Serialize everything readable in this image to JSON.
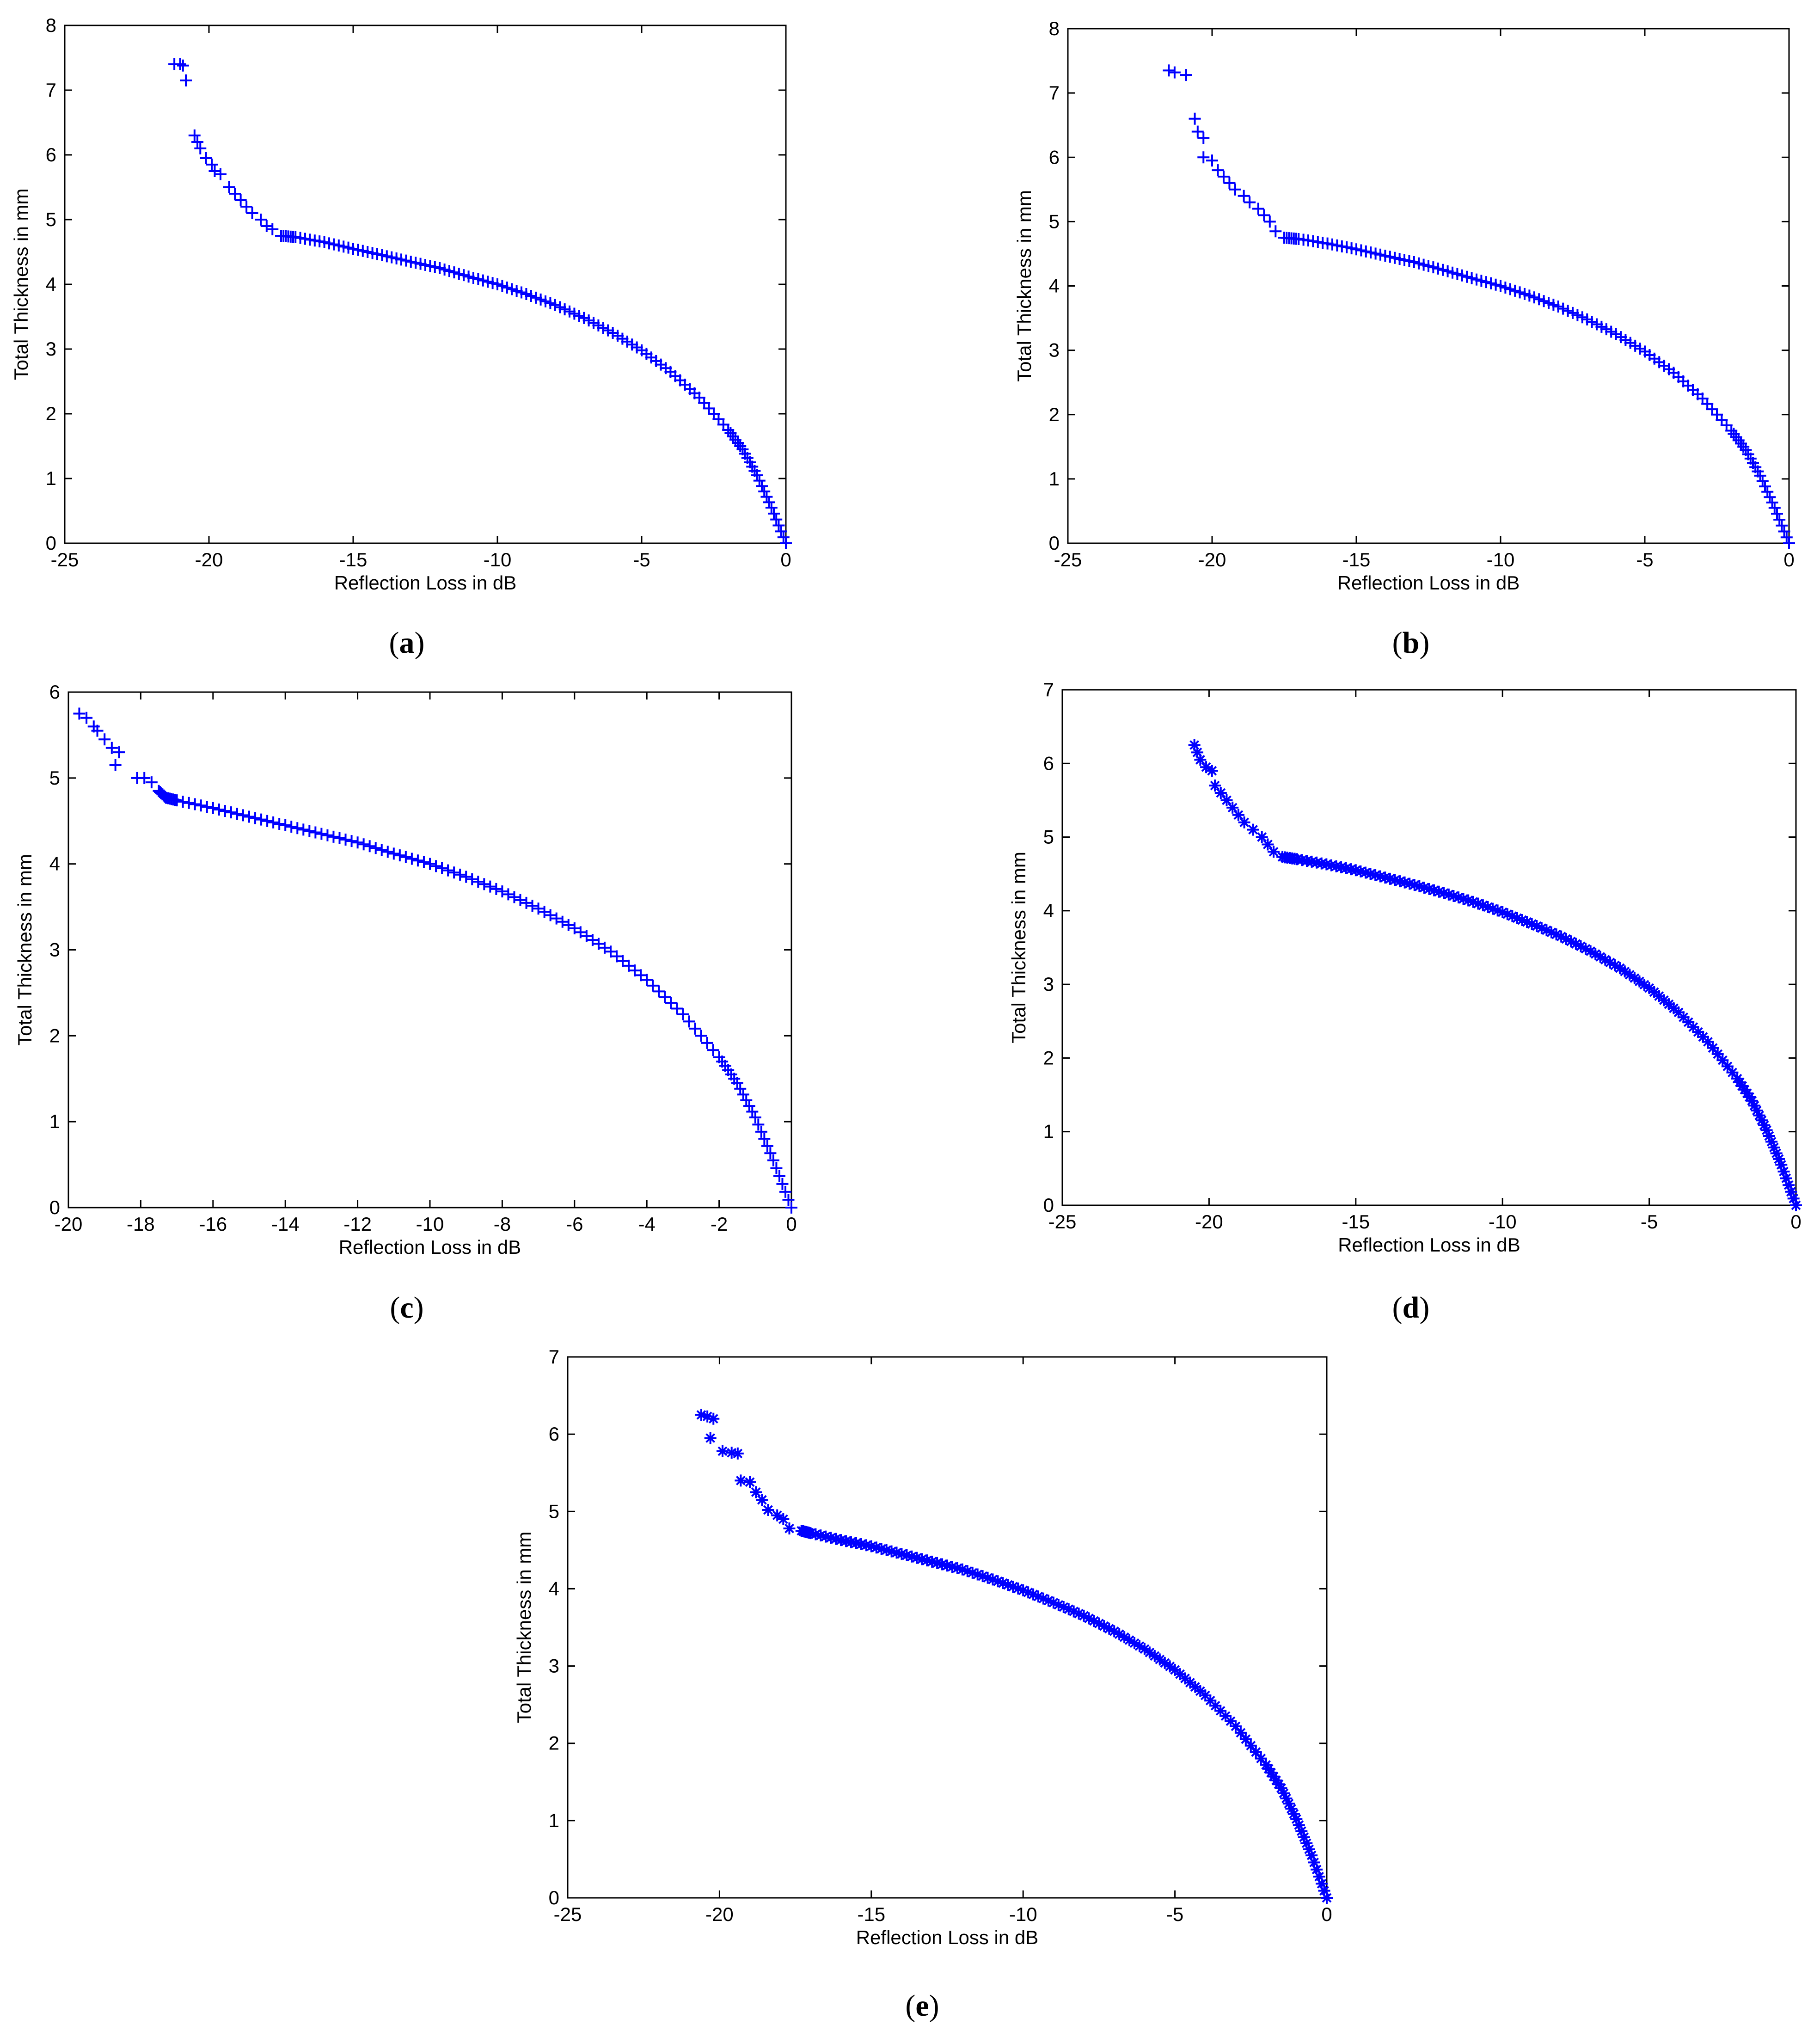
{
  "chart_data": [
    {
      "type": "scatter",
      "panel": "a",
      "marker": "plus",
      "xlabel": "Reflection Loss in dB",
      "ylabel": "Total Thickness in mm",
      "xlim": [
        -25,
        0
      ],
      "ylim": [
        0,
        8
      ],
      "xticks": [
        -25,
        -20,
        -15,
        -10,
        -5,
        0
      ],
      "yticks": [
        0,
        1,
        2,
        3,
        4,
        5,
        6,
        7,
        8
      ],
      "grid": false,
      "points": [
        [
          -21.2,
          7.4
        ],
        [
          -21.0,
          7.4
        ],
        [
          -20.9,
          7.38
        ],
        [
          -20.8,
          7.15
        ],
        [
          -20.5,
          6.3
        ],
        [
          -20.4,
          6.2
        ],
        [
          -20.3,
          6.1
        ],
        [
          -20.1,
          5.95
        ],
        [
          -19.9,
          5.85
        ],
        [
          -19.8,
          5.75
        ],
        [
          -19.6,
          5.7
        ],
        [
          -19.3,
          5.5
        ],
        [
          -19.1,
          5.4
        ],
        [
          -18.9,
          5.3
        ],
        [
          -18.7,
          5.2
        ],
        [
          -18.5,
          5.1
        ],
        [
          -18.2,
          5.0
        ],
        [
          -18.0,
          4.9
        ],
        [
          -17.8,
          4.85
        ],
        [
          -17.5,
          4.75
        ],
        [
          -17.0,
          4.73
        ],
        [
          -16.0,
          4.65
        ],
        [
          -15.0,
          4.55
        ],
        [
          -14.0,
          4.45
        ],
        [
          -13.0,
          4.35
        ],
        [
          -12.0,
          4.25
        ],
        [
          -11.0,
          4.12
        ],
        [
          -10.0,
          4.0
        ],
        [
          -9.0,
          3.85
        ],
        [
          -8.0,
          3.68
        ],
        [
          -7.0,
          3.48
        ],
        [
          -6.0,
          3.25
        ],
        [
          -5.0,
          2.98
        ],
        [
          -4.0,
          2.65
        ],
        [
          -3.0,
          2.25
        ],
        [
          -2.0,
          1.75
        ],
        [
          -1.5,
          1.45
        ],
        [
          -1.0,
          1.05
        ],
        [
          -0.5,
          0.55
        ],
        [
          0.0,
          0.0
        ]
      ]
    },
    {
      "type": "scatter",
      "panel": "b",
      "marker": "plus",
      "xlabel": "Reflection Loss in dB",
      "ylabel": "Total Thickness in mm",
      "xlim": [
        -25,
        0
      ],
      "ylim": [
        0,
        8
      ],
      "xticks": [
        -25,
        -20,
        -15,
        -10,
        -5,
        0
      ],
      "yticks": [
        0,
        1,
        2,
        3,
        4,
        5,
        6,
        7,
        8
      ],
      "grid": false,
      "points": [
        [
          -21.5,
          7.35
        ],
        [
          -21.3,
          7.32
        ],
        [
          -20.9,
          7.28
        ],
        [
          -20.6,
          6.6
        ],
        [
          -20.5,
          6.4
        ],
        [
          -20.3,
          6.3
        ],
        [
          -20.3,
          6.0
        ],
        [
          -20.0,
          5.95
        ],
        [
          -19.8,
          5.8
        ],
        [
          -19.6,
          5.7
        ],
        [
          -19.4,
          5.6
        ],
        [
          -19.2,
          5.5
        ],
        [
          -18.9,
          5.4
        ],
        [
          -18.7,
          5.3
        ],
        [
          -18.4,
          5.2
        ],
        [
          -18.2,
          5.1
        ],
        [
          -18.0,
          5.0
        ],
        [
          -17.8,
          4.85
        ],
        [
          -17.5,
          4.75
        ],
        [
          -17.0,
          4.73
        ],
        [
          -16.0,
          4.66
        ],
        [
          -15.0,
          4.57
        ],
        [
          -14.0,
          4.47
        ],
        [
          -13.0,
          4.37
        ],
        [
          -12.0,
          4.25
        ],
        [
          -11.0,
          4.12
        ],
        [
          -10.0,
          4.0
        ],
        [
          -9.0,
          3.85
        ],
        [
          -8.0,
          3.68
        ],
        [
          -7.0,
          3.48
        ],
        [
          -6.0,
          3.25
        ],
        [
          -5.0,
          2.98
        ],
        [
          -4.0,
          2.65
        ],
        [
          -3.0,
          2.25
        ],
        [
          -2.0,
          1.75
        ],
        [
          -1.5,
          1.45
        ],
        [
          -1.0,
          1.05
        ],
        [
          -0.5,
          0.55
        ],
        [
          0.0,
          0.0
        ]
      ]
    },
    {
      "type": "scatter",
      "panel": "c",
      "marker": "plus",
      "xlabel": "Reflection Loss in dB",
      "ylabel": "Total Thickness in mm",
      "xlim": [
        -20,
        0
      ],
      "ylim": [
        0,
        6
      ],
      "xticks": [
        -20,
        -18,
        -16,
        -14,
        -12,
        -10,
        -8,
        -6,
        -4,
        -2,
        0
      ],
      "yticks": [
        0,
        1,
        2,
        3,
        4,
        5,
        6
      ],
      "grid": false,
      "points": [
        [
          -19.7,
          5.75
        ],
        [
          -19.5,
          5.7
        ],
        [
          -19.3,
          5.6
        ],
        [
          -19.2,
          5.55
        ],
        [
          -19.0,
          5.45
        ],
        [
          -18.8,
          5.35
        ],
        [
          -18.6,
          5.3
        ],
        [
          -18.7,
          5.15
        ],
        [
          -18.1,
          5.0
        ],
        [
          -17.9,
          5.0
        ],
        [
          -17.7,
          4.95
        ],
        [
          -17.5,
          4.85
        ],
        [
          -17.3,
          4.77
        ],
        [
          -17.0,
          4.74
        ],
        [
          -16.0,
          4.65
        ],
        [
          -15.0,
          4.55
        ],
        [
          -14.0,
          4.45
        ],
        [
          -13.0,
          4.35
        ],
        [
          -12.0,
          4.25
        ],
        [
          -11.0,
          4.12
        ],
        [
          -10.0,
          4.0
        ],
        [
          -9.0,
          3.85
        ],
        [
          -8.0,
          3.68
        ],
        [
          -7.0,
          3.48
        ],
        [
          -6.0,
          3.25
        ],
        [
          -5.0,
          2.98
        ],
        [
          -4.0,
          2.65
        ],
        [
          -3.0,
          2.25
        ],
        [
          -2.0,
          1.75
        ],
        [
          -1.5,
          1.45
        ],
        [
          -1.0,
          1.05
        ],
        [
          -0.5,
          0.55
        ],
        [
          0.0,
          0.0
        ]
      ]
    },
    {
      "type": "scatter",
      "panel": "d",
      "marker": "star",
      "xlabel": "Reflection Loss in dB",
      "ylabel": "Total Thickness in mm",
      "xlim": [
        -25,
        0
      ],
      "ylim": [
        0,
        7
      ],
      "xticks": [
        -25,
        -20,
        -15,
        -10,
        -5,
        0
      ],
      "yticks": [
        0,
        1,
        2,
        3,
        4,
        5,
        6,
        7
      ],
      "grid": false,
      "points": [
        [
          -20.5,
          6.25
        ],
        [
          -20.4,
          6.15
        ],
        [
          -20.3,
          6.05
        ],
        [
          -20.1,
          5.95
        ],
        [
          -19.9,
          5.9
        ],
        [
          -19.8,
          5.7
        ],
        [
          -19.6,
          5.6
        ],
        [
          -19.4,
          5.5
        ],
        [
          -19.2,
          5.4
        ],
        [
          -19.0,
          5.3
        ],
        [
          -18.8,
          5.2
        ],
        [
          -18.5,
          5.1
        ],
        [
          -18.2,
          5.0
        ],
        [
          -18.0,
          4.9
        ],
        [
          -17.8,
          4.8
        ],
        [
          -17.5,
          4.73
        ],
        [
          -17.0,
          4.7
        ],
        [
          -16.0,
          4.63
        ],
        [
          -15.0,
          4.55
        ],
        [
          -14.0,
          4.45
        ],
        [
          -13.0,
          4.35
        ],
        [
          -12.0,
          4.24
        ],
        [
          -11.0,
          4.12
        ],
        [
          -10.0,
          3.98
        ],
        [
          -9.0,
          3.82
        ],
        [
          -8.0,
          3.65
        ],
        [
          -7.0,
          3.45
        ],
        [
          -6.0,
          3.22
        ],
        [
          -5.0,
          2.95
        ],
        [
          -4.0,
          2.62
        ],
        [
          -3.0,
          2.22
        ],
        [
          -2.0,
          1.72
        ],
        [
          -1.5,
          1.42
        ],
        [
          -1.0,
          1.02
        ],
        [
          -0.5,
          0.55
        ],
        [
          0.0,
          0.0
        ]
      ]
    },
    {
      "type": "scatter",
      "panel": "e",
      "marker": "star",
      "xlabel": "Reflection Loss in dB",
      "ylabel": "Total Thickness in mm",
      "xlim": [
        -25,
        0
      ],
      "ylim": [
        0,
        7
      ],
      "xticks": [
        -25,
        -20,
        -15,
        -10,
        -5,
        0
      ],
      "yticks": [
        0,
        1,
        2,
        3,
        4,
        5,
        6,
        7
      ],
      "grid": false,
      "points": [
        [
          -20.6,
          6.25
        ],
        [
          -20.4,
          6.23
        ],
        [
          -20.2,
          6.2
        ],
        [
          -20.3,
          5.95
        ],
        [
          -19.9,
          5.78
        ],
        [
          -19.6,
          5.76
        ],
        [
          -19.4,
          5.75
        ],
        [
          -19.3,
          5.4
        ],
        [
          -19.0,
          5.38
        ],
        [
          -18.8,
          5.25
        ],
        [
          -18.6,
          5.15
        ],
        [
          -18.4,
          5.02
        ],
        [
          -18.1,
          4.95
        ],
        [
          -17.9,
          4.9
        ],
        [
          -17.7,
          4.78
        ],
        [
          -17.3,
          4.75
        ],
        [
          -17.0,
          4.72
        ],
        [
          -16.0,
          4.63
        ],
        [
          -15.0,
          4.55
        ],
        [
          -14.0,
          4.45
        ],
        [
          -13.0,
          4.35
        ],
        [
          -12.0,
          4.25
        ],
        [
          -11.0,
          4.12
        ],
        [
          -10.0,
          3.98
        ],
        [
          -9.0,
          3.82
        ],
        [
          -8.0,
          3.65
        ],
        [
          -7.0,
          3.45
        ],
        [
          -6.0,
          3.22
        ],
        [
          -5.0,
          2.95
        ],
        [
          -4.0,
          2.62
        ],
        [
          -3.0,
          2.22
        ],
        [
          -2.0,
          1.72
        ],
        [
          -1.5,
          1.42
        ],
        [
          -1.0,
          1.02
        ],
        [
          -0.5,
          0.55
        ],
        [
          0.0,
          0.0
        ]
      ]
    }
  ],
  "panel_labels": {
    "a": {
      "open": "(",
      "letter": "a",
      "close": ")"
    },
    "b": {
      "open": "(",
      "letter": "b",
      "close": ")"
    },
    "c": {
      "open": "(",
      "letter": "c",
      "close": ")"
    },
    "d": {
      "open": "(",
      "letter": "d",
      "close": ")"
    },
    "e": {
      "open": "(",
      "letter": "e",
      "close": ")"
    }
  },
  "colors": {
    "marker": "#0000ff",
    "axes": "#000000",
    "background": "#ffffff"
  }
}
